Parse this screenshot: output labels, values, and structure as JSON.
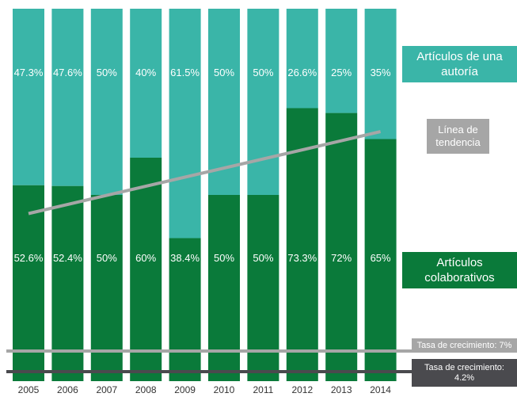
{
  "chart_data": {
    "type": "bar",
    "stacked": true,
    "normalized": true,
    "categories": [
      "2005",
      "2006",
      "2007",
      "2008",
      "2009",
      "2010",
      "2011",
      "2012",
      "2013",
      "2014"
    ],
    "series": [
      {
        "name": "Artículos colaborativos",
        "color": "#0a7a3a",
        "values": [
          52.6,
          52.4,
          50,
          60,
          38.4,
          50,
          50,
          73.3,
          72,
          65
        ],
        "labels": [
          "52.6%",
          "52.4%",
          "50%",
          "60%",
          "38.4%",
          "50%",
          "50%",
          "73.3%",
          "72%",
          "65%"
        ]
      },
      {
        "name": "Artículos de una autoría",
        "color": "#3ab5a8",
        "values": [
          47.3,
          47.6,
          50,
          40,
          61.5,
          50,
          50,
          26.6,
          25,
          35
        ],
        "labels": [
          "47.3%",
          "47.6%",
          "50%",
          "40%",
          "61.5%",
          "50%",
          "50%",
          "26.6%",
          "25%",
          "35%"
        ]
      }
    ],
    "trendline": {
      "name": "Línea de tendencia",
      "color": "#a6a6a6",
      "start": {
        "x": "2005",
        "y": 45
      },
      "end": {
        "x": "2014",
        "y": 67
      }
    },
    "legend": {
      "single_author": "Artículos de una autoría",
      "trend": "Línea de tendencia",
      "collaborative": "Artículos colaborativos"
    },
    "growth_rates": [
      {
        "label": "Tasa de crecimiento: 7%",
        "color": "#a6a6a6"
      },
      {
        "label": "Tasa de crecimiento: 4.2%",
        "color": "#4a4a4e"
      }
    ],
    "ylim": [
      0,
      100
    ],
    "grid": false
  }
}
